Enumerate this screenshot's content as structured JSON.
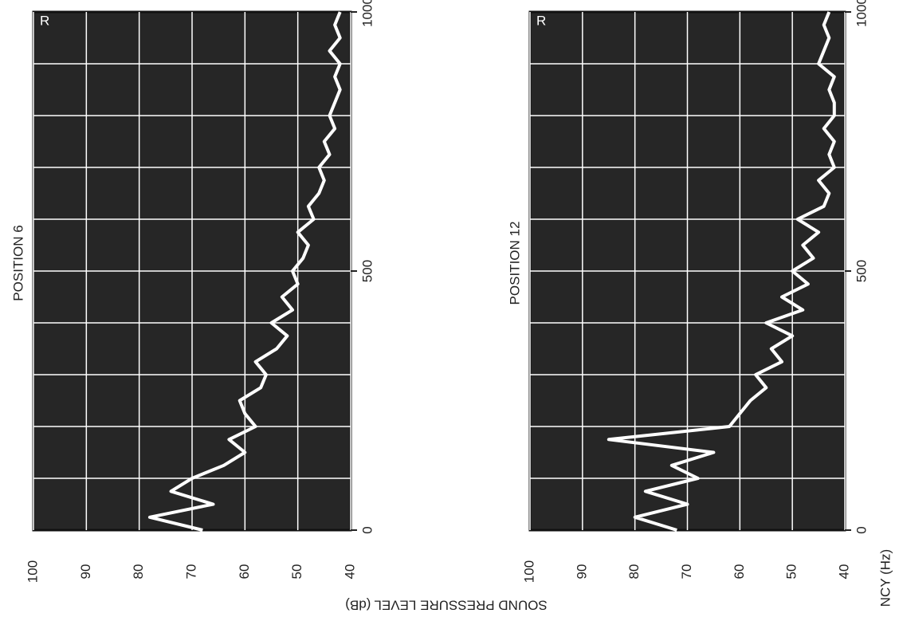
{
  "chart_data": [
    {
      "type": "line",
      "title": "POSITION 6",
      "annotation": "R",
      "ylabel": "SOUND PRESSURE LEVEL (dB)",
      "x": [
        0,
        25,
        50,
        75,
        100,
        125,
        150,
        175,
        200,
        225,
        250,
        275,
        300,
        325,
        350,
        375,
        400,
        425,
        450,
        475,
        500,
        525,
        550,
        575,
        600,
        625,
        650,
        675,
        700,
        725,
        750,
        775,
        800,
        825,
        850,
        875,
        900,
        925,
        950,
        975,
        1000
      ],
      "series": [
        {
          "color": "#ffffff",
          "values": [
            68,
            78,
            66,
            74,
            70,
            64,
            60,
            63,
            58,
            60,
            61,
            57,
            56,
            58,
            54,
            52,
            55,
            51,
            53,
            50,
            51,
            49,
            48,
            50,
            47,
            48,
            46,
            45,
            46,
            44,
            45,
            43,
            44,
            43,
            42,
            43,
            42,
            44,
            42,
            43,
            42
          ]
        }
      ],
      "xlim": [
        0,
        1000
      ],
      "xticks": [
        0,
        500,
        1000
      ],
      "ylim": [
        40,
        100
      ],
      "yticks": [
        40,
        50,
        60,
        70,
        80,
        90,
        100
      ],
      "grid": true,
      "background": "#262626"
    },
    {
      "type": "line",
      "title": "POSITION 12",
      "annotation": "R",
      "xlabel": "NCY (Hz)",
      "x": [
        0,
        25,
        50,
        75,
        100,
        125,
        150,
        175,
        200,
        225,
        250,
        275,
        300,
        325,
        350,
        375,
        400,
        425,
        450,
        475,
        500,
        525,
        550,
        575,
        600,
        625,
        650,
        675,
        700,
        725,
        750,
        775,
        800,
        825,
        850,
        875,
        900,
        925,
        950,
        975,
        1000
      ],
      "series": [
        {
          "color": "#ffffff",
          "values": [
            72,
            80,
            70,
            78,
            68,
            73,
            65,
            85,
            62,
            60,
            58,
            55,
            57,
            52,
            54,
            50,
            55,
            48,
            52,
            47,
            50,
            46,
            48,
            45,
            49,
            44,
            43,
            45,
            42,
            43,
            42,
            44,
            42,
            42,
            43,
            42,
            45,
            44,
            43,
            44,
            43
          ]
        }
      ],
      "xlim": [
        0,
        1000
      ],
      "xticks": [
        0,
        500,
        1000
      ],
      "ylim": [
        40,
        100
      ],
      "yticks": [
        40,
        50,
        60,
        70,
        80,
        90,
        100
      ],
      "grid": true,
      "background": "#262626"
    }
  ]
}
